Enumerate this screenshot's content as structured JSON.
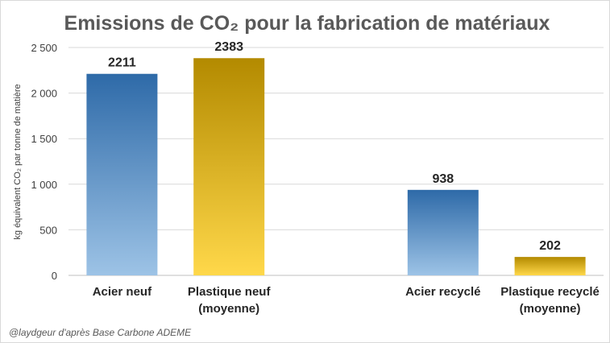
{
  "chart_data": {
    "type": "bar",
    "title": "Emissions de CO₂ pour la fabrication de matériaux",
    "ylabel": "kg équivalent CO₂ par tonne de matière",
    "xlabel": "",
    "ylim": [
      0,
      2500
    ],
    "yticks": [
      0,
      500,
      1000,
      1500,
      2000,
      2500
    ],
    "grid": true,
    "categories": [
      [
        "Acier neuf"
      ],
      [
        "Plastique neuf",
        "(moyenne)"
      ],
      [],
      [
        "Acier recyclé"
      ],
      [
        "Plastique recyclé",
        "(moyenne)"
      ]
    ],
    "values": [
      2211,
      2383,
      null,
      938,
      202
    ],
    "data_labels": [
      "2211",
      "2383",
      "",
      "938",
      "202"
    ],
    "bar_colors": [
      "blue",
      "gold",
      "",
      "blue",
      "gold"
    ],
    "colors": {
      "blue_top": "#2e6aa8",
      "blue_bottom": "#9dc3e6",
      "gold_top": "#b38a00",
      "gold_bottom": "#ffd84a"
    }
  },
  "credit": "@laydgeur d'après Base Carbone ADEME"
}
